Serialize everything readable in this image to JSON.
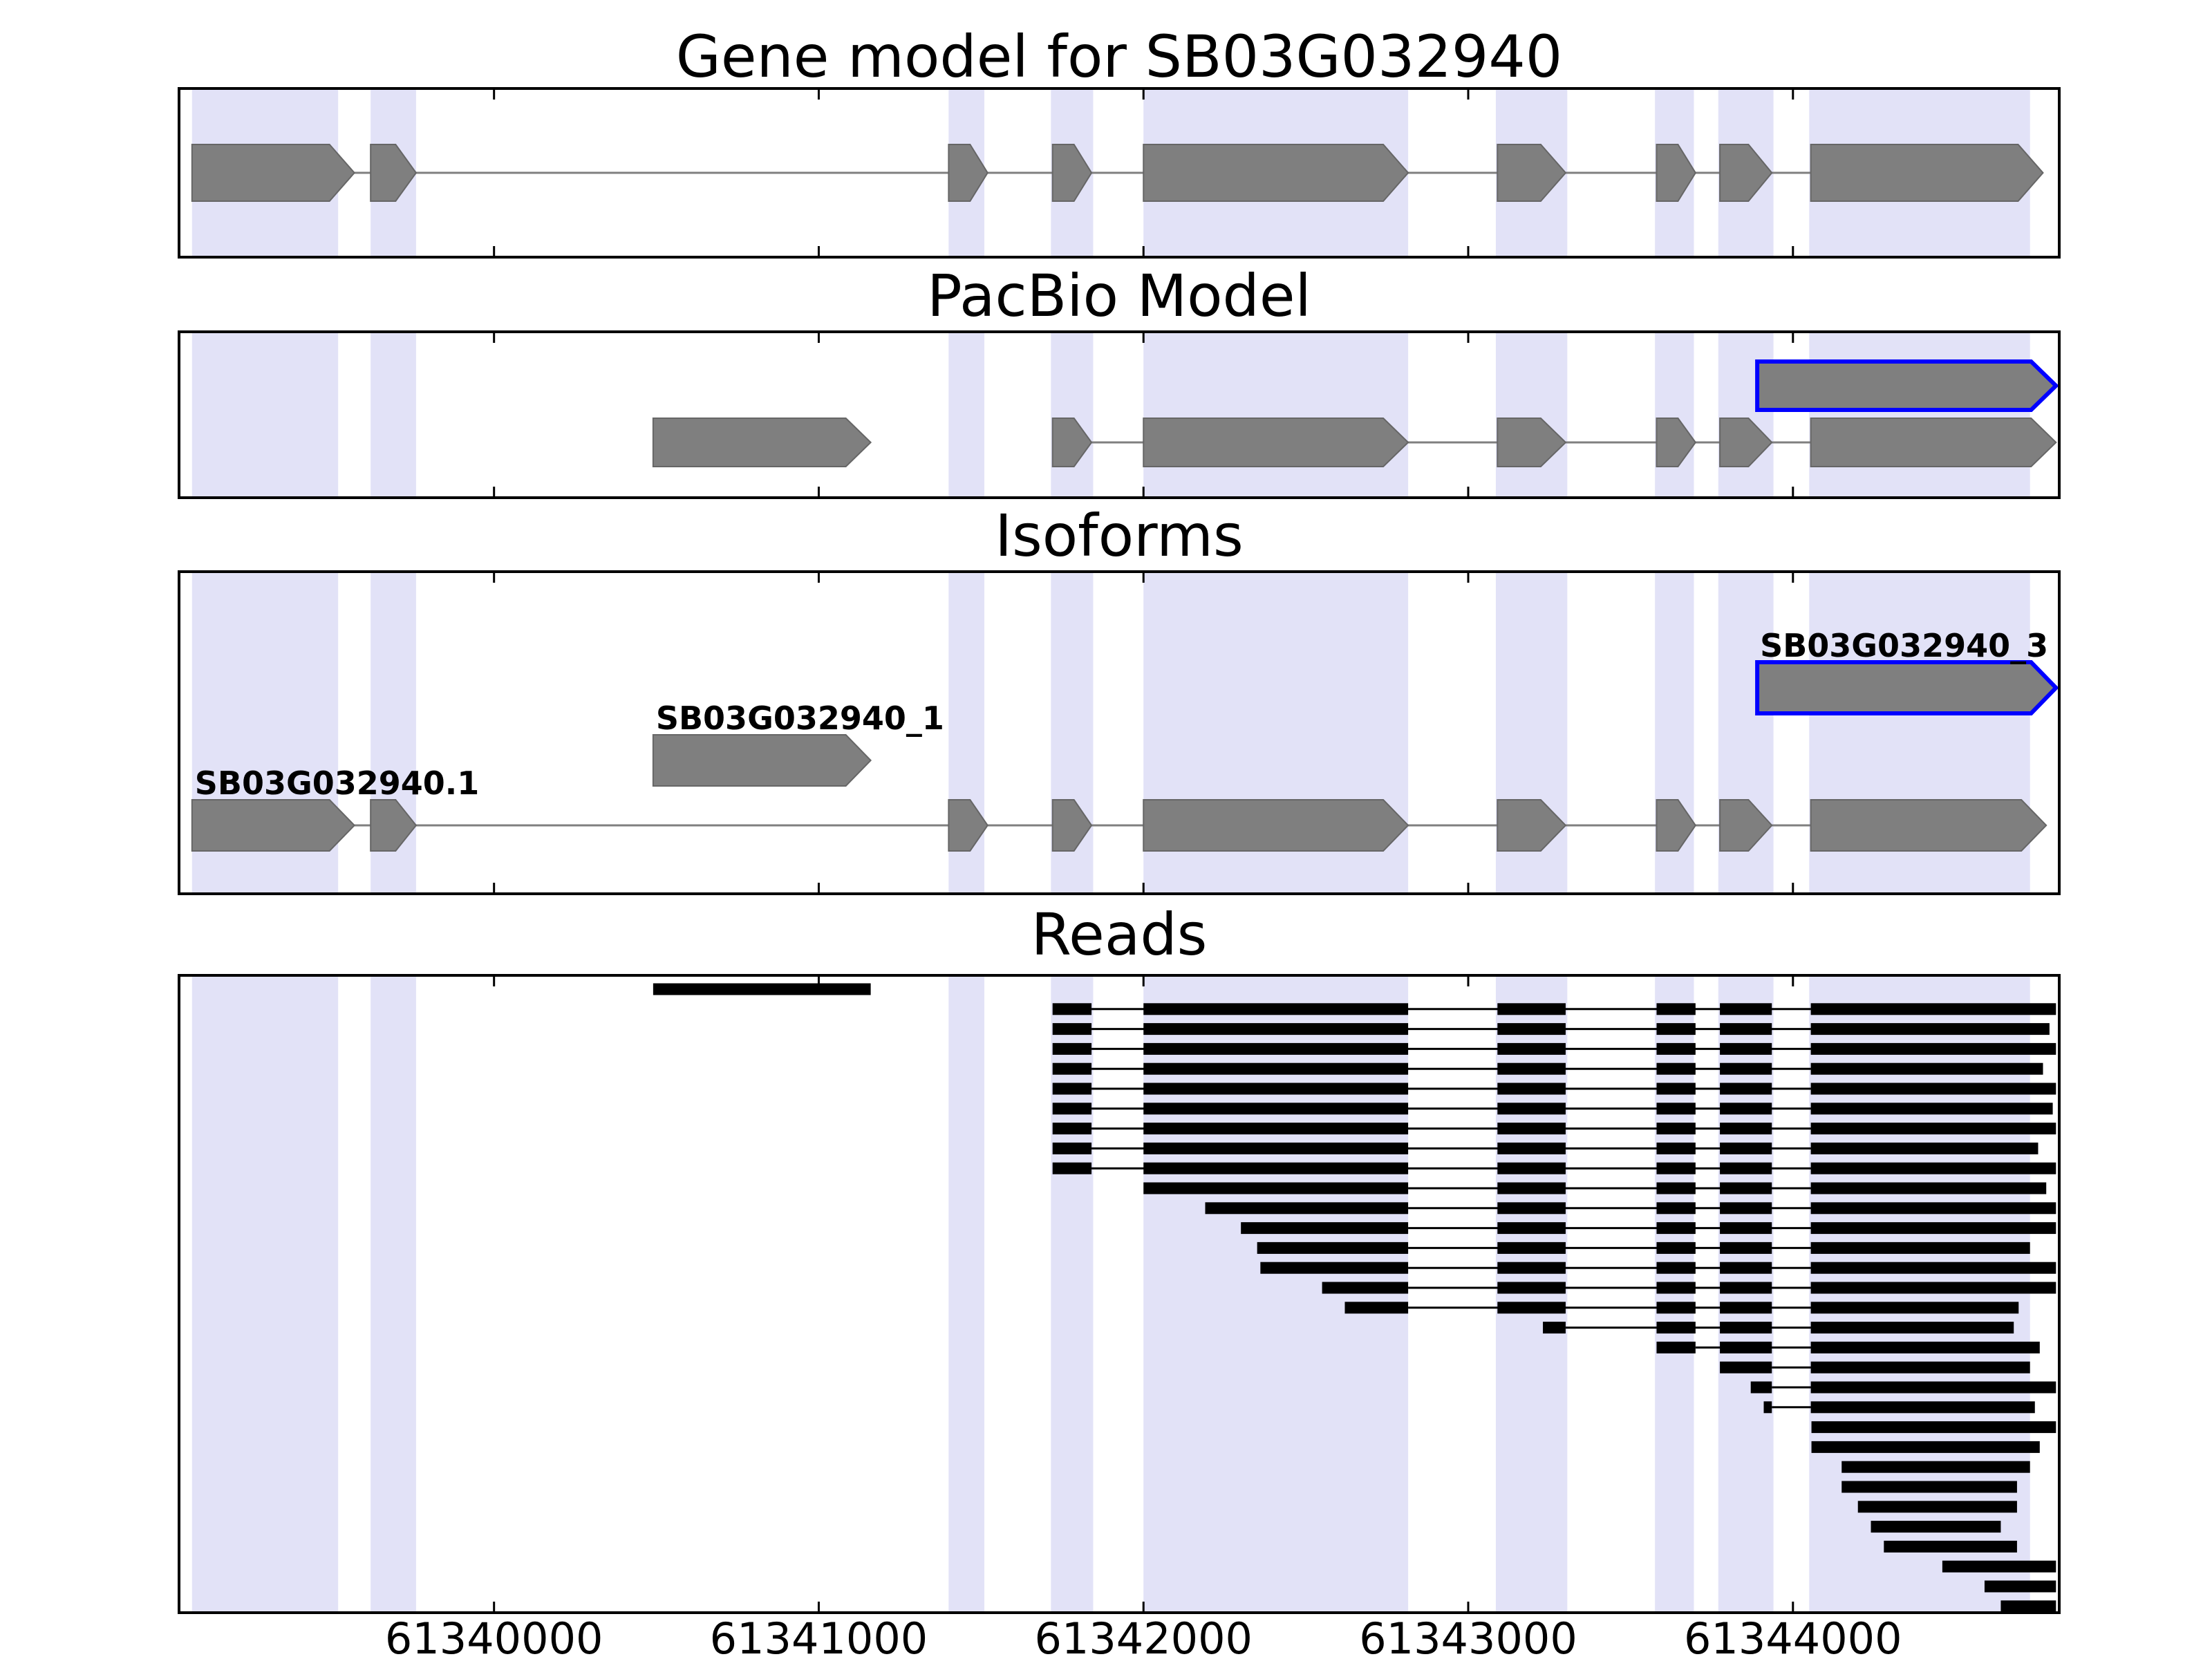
{
  "chart_data": {
    "type": "genome-browser-tracks",
    "gene_id": "SB03G032940",
    "x_axis": {
      "min": 61339030,
      "max": 61344820,
      "ticks": [
        61340000,
        61341000,
        61342000,
        61343000,
        61344000
      ],
      "tick_labels": [
        "61340000",
        "61341000",
        "61342000",
        "61343000",
        "61344000"
      ]
    },
    "colors": {
      "exon_fill": "#7f7f7f",
      "exon_edge": "#666666",
      "intron_line": "#7f7f7f",
      "highlight_band": "#e2e2f7",
      "highlight_edge_blue": "#0000ff",
      "read": "#000000",
      "panel_border": "#000000",
      "text": "#000000"
    },
    "highlight_regions": [
      [
        61339070,
        61339520
      ],
      [
        61339620,
        61339760
      ],
      [
        61341400,
        61341510
      ],
      [
        61341715,
        61341845
      ],
      [
        61342000,
        61342815
      ],
      [
        61343085,
        61343305
      ],
      [
        61343575,
        61343695
      ],
      [
        61343770,
        61343940
      ],
      [
        61344050,
        61344730
      ]
    ],
    "tracks": {
      "gene_model": {
        "title": "Gene model for SB03G032940",
        "strand": "+",
        "exons": [
          [
            61339070,
            61339570
          ],
          [
            61339620,
            61339760
          ],
          [
            61341400,
            61341520
          ],
          [
            61341720,
            61341840
          ],
          [
            61342000,
            61342815
          ],
          [
            61343090,
            61343300
          ],
          [
            61343580,
            61343700
          ],
          [
            61343775,
            61343935
          ],
          [
            61344055,
            61344770
          ]
        ]
      },
      "pacbio": {
        "title": "PacBio Model",
        "models": [
          {
            "row": 0,
            "highlighted": true,
            "exons": [
              [
                61343890,
                61344810
              ]
            ]
          },
          {
            "row": 1,
            "highlighted": false,
            "exons": [
              [
                61340490,
                61341160
              ]
            ]
          },
          {
            "row": 1,
            "highlighted": false,
            "exons": [
              [
                61341720,
                61341840
              ],
              [
                61342000,
                61342815
              ],
              [
                61343090,
                61343300
              ],
              [
                61343580,
                61343700
              ],
              [
                61343775,
                61343935
              ],
              [
                61344055,
                61344810
              ]
            ]
          }
        ]
      },
      "isoforms": {
        "title": "Isoforms",
        "items": [
          {
            "name": "SB03G032940_3",
            "highlighted": true,
            "exons": [
              [
                61343890,
                61344810
              ]
            ]
          },
          {
            "name": "SB03G032940_1",
            "highlighted": false,
            "exons": [
              [
                61340490,
                61341160
              ]
            ]
          },
          {
            "name": "SB03G032940.1",
            "highlighted": false,
            "exons": [
              [
                61339070,
                61339570
              ],
              [
                61339620,
                61339760
              ],
              [
                61341400,
                61341520
              ],
              [
                61341720,
                61341840
              ],
              [
                61342000,
                61342815
              ],
              [
                61343090,
                61343300
              ],
              [
                61343580,
                61343700
              ],
              [
                61343775,
                61343935
              ],
              [
                61344055,
                61344780
              ]
            ]
          }
        ]
      },
      "reads": {
        "title": "Reads",
        "rows": [
          [
            [
              61340490,
              61341160
            ]
          ],
          [
            [
              61341720,
              61341840
            ],
            [
              61342000,
              61342815
            ],
            [
              61343090,
              61343300
            ],
            [
              61343580,
              61343700
            ],
            [
              61343775,
              61343935
            ],
            [
              61344055,
              61344810
            ]
          ],
          [
            [
              61341720,
              61341840
            ],
            [
              61342000,
              61342815
            ],
            [
              61343090,
              61343300
            ],
            [
              61343580,
              61343700
            ],
            [
              61343775,
              61343935
            ],
            [
              61344055,
              61344790
            ]
          ],
          [
            [
              61341720,
              61341840
            ],
            [
              61342000,
              61342815
            ],
            [
              61343090,
              61343300
            ],
            [
              61343580,
              61343700
            ],
            [
              61343775,
              61343935
            ],
            [
              61344055,
              61344810
            ]
          ],
          [
            [
              61341720,
              61341840
            ],
            [
              61342000,
              61342815
            ],
            [
              61343090,
              61343300
            ],
            [
              61343580,
              61343700
            ],
            [
              61343775,
              61343935
            ],
            [
              61344055,
              61344770
            ]
          ],
          [
            [
              61341720,
              61341840
            ],
            [
              61342000,
              61342815
            ],
            [
              61343090,
              61343300
            ],
            [
              61343580,
              61343700
            ],
            [
              61343775,
              61343935
            ],
            [
              61344055,
              61344810
            ]
          ],
          [
            [
              61341720,
              61341840
            ],
            [
              61342000,
              61342815
            ],
            [
              61343090,
              61343300
            ],
            [
              61343580,
              61343700
            ],
            [
              61343775,
              61343935
            ],
            [
              61344055,
              61344800
            ]
          ],
          [
            [
              61341720,
              61341840
            ],
            [
              61342000,
              61342815
            ],
            [
              61343090,
              61343300
            ],
            [
              61343580,
              61343700
            ],
            [
              61343775,
              61343935
            ],
            [
              61344055,
              61344810
            ]
          ],
          [
            [
              61341720,
              61341840
            ],
            [
              61342000,
              61342815
            ],
            [
              61343090,
              61343300
            ],
            [
              61343580,
              61343700
            ],
            [
              61343775,
              61343935
            ],
            [
              61344055,
              61344755
            ]
          ],
          [
            [
              61341720,
              61341840
            ],
            [
              61342000,
              61342815
            ],
            [
              61343090,
              61343300
            ],
            [
              61343580,
              61343700
            ],
            [
              61343775,
              61343935
            ],
            [
              61344055,
              61344810
            ]
          ],
          [
            [
              61342000,
              61342815
            ],
            [
              61343090,
              61343300
            ],
            [
              61343580,
              61343700
            ],
            [
              61343775,
              61343935
            ],
            [
              61344055,
              61344780
            ]
          ],
          [
            [
              61342190,
              61342815
            ],
            [
              61343090,
              61343300
            ],
            [
              61343580,
              61343700
            ],
            [
              61343775,
              61343935
            ],
            [
              61344055,
              61344810
            ]
          ],
          [
            [
              61342300,
              61342815
            ],
            [
              61343090,
              61343300
            ],
            [
              61343580,
              61343700
            ],
            [
              61343775,
              61343935
            ],
            [
              61344055,
              61344810
            ]
          ],
          [
            [
              61342350,
              61342815
            ],
            [
              61343090,
              61343300
            ],
            [
              61343580,
              61343700
            ],
            [
              61343775,
              61343935
            ],
            [
              61344055,
              61344730
            ]
          ],
          [
            [
              61342360,
              61342815
            ],
            [
              61343090,
              61343300
            ],
            [
              61343580,
              61343700
            ],
            [
              61343775,
              61343935
            ],
            [
              61344055,
              61344810
            ]
          ],
          [
            [
              61342550,
              61342815
            ],
            [
              61343090,
              61343300
            ],
            [
              61343580,
              61343700
            ],
            [
              61343775,
              61343935
            ],
            [
              61344055,
              61344810
            ]
          ],
          [
            [
              61342620,
              61342815
            ],
            [
              61343090,
              61343300
            ],
            [
              61343580,
              61343700
            ],
            [
              61343775,
              61343935
            ],
            [
              61344055,
              61344695
            ]
          ],
          [
            [
              61343230,
              61343300
            ],
            [
              61343580,
              61343700
            ],
            [
              61343775,
              61343935
            ],
            [
              61344055,
              61344680
            ]
          ],
          [
            [
              61343580,
              61343700
            ],
            [
              61343775,
              61343935
            ],
            [
              61344055,
              61344760
            ]
          ],
          [
            [
              61343775,
              61343935
            ],
            [
              61344055,
              61344730
            ]
          ],
          [
            [
              61343870,
              61343935
            ],
            [
              61344055,
              61344810
            ]
          ],
          [
            [
              61343910,
              61343935
            ],
            [
              61344055,
              61344745
            ]
          ],
          [
            [
              61344057,
              61344810
            ]
          ],
          [
            [
              61344057,
              61344760
            ]
          ],
          [
            [
              61344150,
              61344730
            ]
          ],
          [
            [
              61344150,
              61344690
            ]
          ],
          [
            [
              61344200,
              61344690
            ]
          ],
          [
            [
              61344240,
              61344640
            ]
          ],
          [
            [
              61344280,
              61344690
            ]
          ],
          [
            [
              61344460,
              61344810
            ]
          ],
          [
            [
              61344590,
              61344810
            ]
          ],
          [
            [
              61344640,
              61344810
            ]
          ]
        ]
      }
    }
  }
}
